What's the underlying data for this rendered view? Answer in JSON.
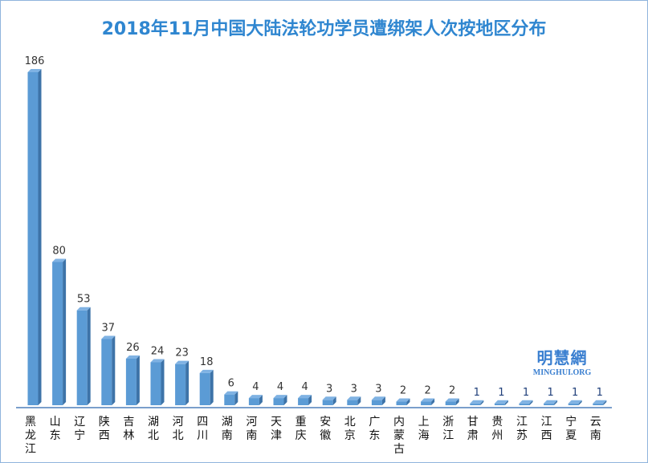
{
  "chart_data": {
    "type": "bar",
    "title": "2018年11月中国大陆法轮功学员遭绑架人次按地区分布",
    "xlabel": "",
    "ylabel": "",
    "ylim": [
      0,
      186
    ],
    "grid": false,
    "categories": [
      "黑龙江",
      "山东",
      "辽宁",
      "陕西",
      "吉林",
      "湖北",
      "河北",
      "四川",
      "湖南",
      "河南",
      "天津",
      "重庆",
      "安徽",
      "北京",
      "广东",
      "内蒙古",
      "上海",
      "浙江",
      "甘肃",
      "贵州",
      "江苏",
      "江西",
      "宁夏",
      "云南"
    ],
    "values": [
      186,
      80,
      53,
      37,
      26,
      24,
      23,
      18,
      6,
      4,
      4,
      4,
      3,
      3,
      3,
      2,
      2,
      2,
      1,
      1,
      1,
      1,
      1,
      1
    ]
  },
  "logo": {
    "cn": "明慧網",
    "en": "MINGHUI.ORG"
  },
  "colors": {
    "bar": "#5b9bd5",
    "bar_dark": "#3d73a8",
    "title": "#2f86d0",
    "axis": "#7a9fcc"
  }
}
